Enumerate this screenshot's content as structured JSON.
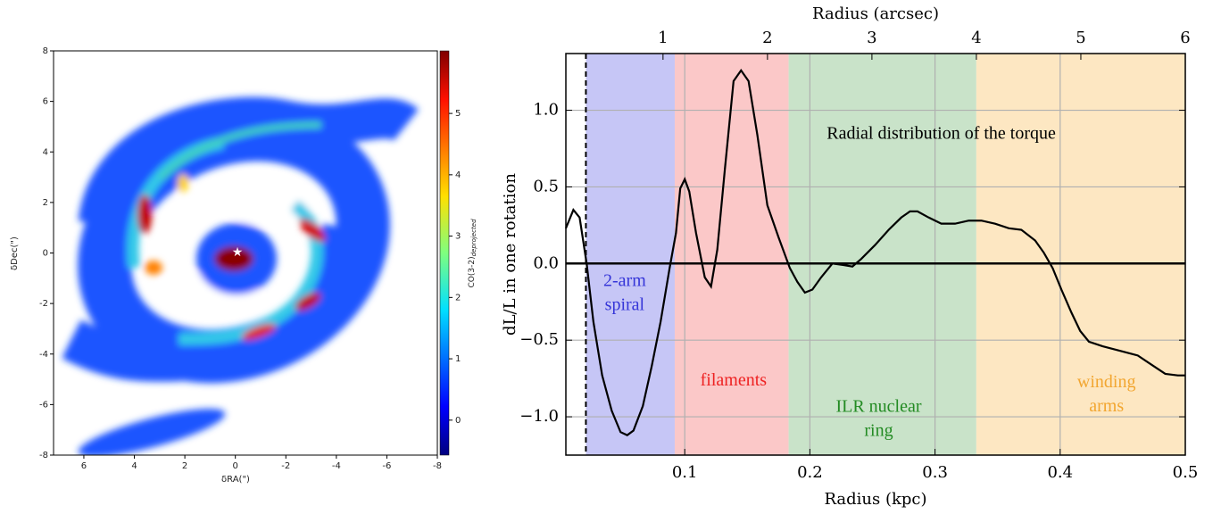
{
  "chart_data": [
    {
      "type": "image",
      "xlabel": "δRA(\")",
      "ylabel": "δDec(\")",
      "xlim": [
        7.2,
        -8
      ],
      "xticks": [
        6,
        4,
        2,
        0,
        -2,
        -4,
        -6,
        -8
      ],
      "ylim": [
        -8,
        8
      ],
      "yticks": [
        -8,
        -6,
        -4,
        -2,
        0,
        2,
        4,
        6,
        8
      ],
      "colorbar": {
        "label": "CO(3-2)",
        "label_sub": "deprojected",
        "lim": [
          -0.57,
          6.02
        ],
        "ticks": [
          0,
          1,
          2,
          3,
          4,
          5
        ],
        "colormap": "jet"
      }
    },
    {
      "type": "line",
      "xlabel": "Radius (kpc)",
      "x2label": "Radius (arcsec)",
      "ylabel": "dL/L in one rotation",
      "x": [
        0.005,
        0.011,
        0.016,
        0.0216,
        0.027,
        0.034,
        0.0416,
        0.0487,
        0.054,
        0.059,
        0.0665,
        0.0736,
        0.0807,
        0.0879,
        0.093,
        0.0964,
        0.1,
        0.1036,
        0.109,
        0.116,
        0.121,
        0.126,
        0.132,
        0.139,
        0.145,
        0.151,
        0.158,
        0.166,
        0.175,
        0.184,
        0.19,
        0.196,
        0.202,
        0.209,
        0.218,
        0.227,
        0.234,
        0.241,
        0.252,
        0.263,
        0.273,
        0.28,
        0.286,
        0.295,
        0.305,
        0.316,
        0.327,
        0.337,
        0.348,
        0.359,
        0.369,
        0.38,
        0.387,
        0.394,
        0.401,
        0.409,
        0.416,
        0.423,
        0.434,
        0.448,
        0.462,
        0.473,
        0.484,
        0.494,
        0.5
      ],
      "series": [
        {
          "color": "#000000",
          "values": [
            0.23,
            0.35,
            0.3,
            0.0,
            -0.38,
            -0.73,
            -0.96,
            -1.1,
            -1.12,
            -1.09,
            -0.93,
            -0.67,
            -0.38,
            -0.03,
            0.2,
            0.49,
            0.55,
            0.47,
            0.2,
            -0.09,
            -0.15,
            0.09,
            0.61,
            1.19,
            1.26,
            1.19,
            0.84,
            0.38,
            0.17,
            -0.03,
            -0.12,
            -0.19,
            -0.17,
            -0.09,
            0.0,
            -0.01,
            -0.02,
            0.03,
            0.12,
            0.22,
            0.3,
            0.34,
            0.34,
            0.3,
            0.26,
            0.26,
            0.28,
            0.28,
            0.26,
            0.23,
            0.22,
            0.15,
            0.07,
            -0.03,
            -0.17,
            -0.32,
            -0.44,
            -0.51,
            -0.54,
            -0.57,
            -0.6,
            -0.66,
            -0.72,
            -0.73,
            -0.73
          ]
        }
      ],
      "xlim": [
        0.005,
        0.5
      ],
      "xticks": [
        0.1,
        0.2,
        0.3,
        0.4,
        0.5
      ],
      "x2lim": [
        0.07,
        6
      ],
      "x2ticks": [
        1,
        2,
        3,
        4,
        5,
        6
      ],
      "ylim": [
        -1.25,
        1.37
      ],
      "yticks": [
        {
          "value": -1,
          "label": "−1.0"
        },
        {
          "value": -0.5,
          "label": "−0.5"
        },
        {
          "value": 0,
          "label": "0.0"
        },
        {
          "value": 0.5,
          "label": "0.5"
        },
        {
          "value": 1,
          "label": "1.0"
        }
      ],
      "grid": true,
      "hline": 0,
      "vline": 0.021,
      "regions": [
        {
          "x0": 0.021,
          "x1": 0.092,
          "color": "#c6c6f6"
        },
        {
          "x0": 0.092,
          "x1": 0.183,
          "color": "#fbc8c8"
        },
        {
          "x0": 0.183,
          "x1": 0.333,
          "color": "#c9e3c9"
        },
        {
          "x0": 0.333,
          "x1": 0.5,
          "color": "#fde7c2"
        }
      ],
      "annotations": [
        {
          "lines": [
            "Radial distribution of the torque"
          ],
          "x": 0.305,
          "y": 0.84,
          "color": "#000000"
        },
        {
          "lines": [
            "2-arm",
            "spiral"
          ],
          "x": 0.052,
          "y": -0.12,
          "color": "#3535d8"
        },
        {
          "lines": [
            "filaments"
          ],
          "x": 0.139,
          "y": -0.77,
          "color": "#ee2222"
        },
        {
          "lines": [
            "ILR nuclear",
            "ring"
          ],
          "x": 0.255,
          "y": -0.94,
          "color": "#238b23"
        },
        {
          "lines": [
            "winding",
            "arms"
          ],
          "x": 0.437,
          "y": -0.78,
          "color": "#f2a630"
        }
      ]
    }
  ]
}
